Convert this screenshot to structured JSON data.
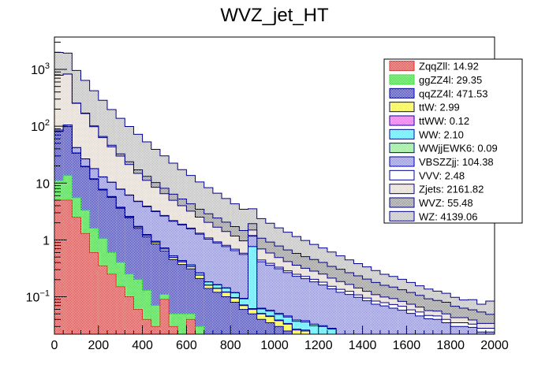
{
  "chart_data": {
    "type": "bar",
    "subtype": "stacked-histogram",
    "title": "WVZ_jet_HT",
    "xlabel": "",
    "ylabel": "",
    "xlim": [
      0,
      2000
    ],
    "ylim": [
      0.022,
      3700
    ],
    "yscale": "log",
    "bin_width": 40,
    "x_ticks": [
      "0",
      "200",
      "400",
      "600",
      "800",
      "1000",
      "1200",
      "1400",
      "1600",
      "1800",
      "2000"
    ],
    "y_ticks": [
      {
        "value": 0.1,
        "base": "10",
        "exp": "−1"
      },
      {
        "value": 1,
        "label": "1"
      },
      {
        "value": 10,
        "label": "10"
      },
      {
        "value": 100,
        "base": "10",
        "exp": "2"
      },
      {
        "value": 1000,
        "base": "10",
        "exp": "3"
      }
    ],
    "legend_position": "top-right",
    "grid": false,
    "series": [
      {
        "name": "ZqqZll",
        "total": "14.92",
        "color": "#d03030",
        "values": [
          5.0,
          5.0,
          2.5,
          1.3,
          0.6,
          0.35,
          0.25,
          0.15,
          0.1,
          0.06,
          0.04,
          0.03,
          0.09,
          0.03,
          0.02,
          0.04,
          0.01
        ]
      },
      {
        "name": "ggZZ4l",
        "total": "29.35",
        "color": "#40d040",
        "values": [
          6.0,
          8.5,
          3.0,
          2.0,
          1.0,
          0.7,
          0.35,
          0.25,
          0.15,
          0.14,
          0.09,
          0.04,
          0.02,
          0.02,
          0.03,
          0.01,
          0.02
        ]
      },
      {
        "name": "qqZZ4l",
        "total": "471.53",
        "color": "#1010a0",
        "values": [
          70,
          85,
          28,
          16,
          10,
          6.5,
          5,
          3.2,
          2.2,
          1.4,
          1.0,
          0.78,
          0.53,
          0.4,
          0.32,
          0.26,
          0.18,
          0.14,
          0.12,
          0.1,
          0.08,
          0.06,
          0.05,
          0.04,
          0.035,
          0.03,
          0.025,
          0.02,
          0.02,
          0.015,
          0.015,
          0.012,
          0.01,
          0.01,
          0.008,
          0.006,
          0.005,
          0.005,
          0.004,
          0.004,
          0.003,
          0.003,
          0.003,
          0.002,
          0.002,
          0.002,
          0.002,
          0.001,
          0.001,
          0.001
        ]
      },
      {
        "name": "ttW",
        "total": "2.99",
        "color": "#f0f060",
        "values": [
          0.3,
          0.3,
          0.25,
          0.2,
          0.18,
          0.15,
          0.12,
          0.1,
          0.09,
          0.08,
          0.07,
          0.06,
          0.05,
          0.04,
          0.04,
          0.03,
          0.03,
          0.02,
          0.02,
          0.02,
          0.015,
          0.01,
          0.01,
          0.01,
          0.01,
          0.008,
          0.008,
          0.006,
          0.005,
          0.005,
          0.004,
          0.004,
          0.003,
          0.003,
          0.003,
          0.002,
          0.002,
          0.002,
          0.002,
          0.002,
          0.001,
          0.001,
          0.001,
          0.001,
          0.001,
          0.001,
          0.001,
          0.001,
          0.001,
          0.001
        ]
      },
      {
        "name": "ttWW",
        "total": "0.12",
        "color": "#e060e0",
        "values": [
          0.01,
          0.01,
          0.01,
          0.008,
          0.008,
          0.006,
          0.006,
          0.005,
          0.005,
          0.004,
          0.004,
          0.004,
          0.003,
          0.003,
          0.003,
          0.003,
          0.002,
          0.002,
          0.002,
          0.002,
          0.002,
          0.002,
          0.002,
          0.001,
          0.001,
          0.001,
          0.001,
          0.001,
          0.001,
          0.001,
          0.001,
          0.001,
          0.001,
          0.001,
          0.001,
          0.001,
          0.001,
          0.001,
          0.001,
          0.001,
          0.001,
          0.001,
          0.001,
          0.001,
          0.001,
          0.001,
          0.001,
          0.001,
          0.001,
          0.001
        ]
      },
      {
        "name": "WW",
        "total": "2.10",
        "color": "#60e0f0",
        "values": [
          0.2,
          0.2,
          0.15,
          0.1,
          0.1,
          0.08,
          0.06,
          0.05,
          0.05,
          0.04,
          0.04,
          0.03,
          0.03,
          0.03,
          0.02,
          0.02,
          0.02,
          0.02,
          0.02,
          0.02,
          0.02,
          0.02,
          0.7,
          0.01,
          0.01,
          0.01,
          0.01,
          0.01,
          0.01,
          0.01,
          0.01,
          0.01,
          0.005,
          0.005,
          0.005,
          0.005,
          0.005,
          0.005,
          0.005,
          0.005,
          0.005,
          0.005,
          0.005,
          0.005,
          0.005,
          0.005,
          0.005,
          0.005,
          0.005,
          0.005
        ]
      },
      {
        "name": "WWjjEWK6",
        "total": "0.09",
        "color": "#90e090",
        "values": [
          0.005,
          0.005,
          0.005,
          0.005,
          0.004,
          0.004,
          0.004,
          0.004,
          0.003,
          0.003,
          0.003,
          0.003,
          0.003,
          0.002,
          0.002,
          0.002,
          0.002,
          0.002,
          0.002,
          0.002,
          0.002,
          0.002,
          0.002,
          0.002,
          0.002,
          0.002,
          0.002,
          0.002,
          0.002,
          0.002,
          0.001,
          0.001,
          0.001,
          0.001,
          0.001,
          0.001,
          0.001,
          0.001,
          0.001,
          0.001,
          0.001,
          0.001,
          0.001,
          0.001,
          0.001,
          0.001,
          0.001,
          0.001,
          0.001,
          0.001
        ]
      },
      {
        "name": "VBSZZjj",
        "total": "104.38",
        "color": "#7070d0",
        "values": [
          4,
          6,
          8,
          7,
          6,
          5,
          4.5,
          4,
          3.5,
          3,
          2.6,
          2.2,
          1.9,
          1.6,
          1.4,
          1.2,
          1.0,
          0.85,
          0.72,
          0.62,
          0.53,
          0.46,
          0.4,
          0.35,
          0.3,
          0.26,
          0.22,
          0.19,
          0.17,
          0.15,
          0.13,
          0.11,
          0.1,
          0.09,
          0.08,
          0.07,
          0.06,
          0.055,
          0.05,
          0.045,
          0.04,
          0.035,
          0.03,
          0.03,
          0.025,
          0.02,
          0.02,
          0.02,
          0.015,
          0.015
        ]
      },
      {
        "name": "VVV",
        "total": "2.48",
        "color": "#ffffff",
        "values": [
          0.1,
          0.12,
          0.12,
          0.12,
          0.11,
          0.1,
          0.1,
          0.09,
          0.09,
          0.08,
          0.08,
          0.07,
          0.07,
          0.06,
          0.06,
          0.05,
          0.05,
          0.05,
          0.04,
          0.04,
          0.04,
          0.03,
          0.03,
          0.03,
          0.03,
          0.02,
          0.02,
          0.02,
          0.02,
          0.02,
          0.02,
          0.015,
          0.015,
          0.015,
          0.01,
          0.01,
          0.01,
          0.01,
          0.01,
          0.01,
          0.008,
          0.008,
          0.006,
          0.006,
          0.005,
          0.005,
          0.005,
          0.004,
          0.004,
          0.004
        ]
      },
      {
        "name": "Zjets",
        "total": "2161.82",
        "color": "#d8d0c8",
        "values": [
          700,
          720,
          210,
          140,
          80,
          50,
          33,
          22,
          15,
          10,
          7.2,
          5.2,
          3.8,
          2.8,
          2.1,
          1.6,
          1.2,
          0.95,
          0.75,
          0.6,
          0.48,
          0.38,
          0.3,
          0.25,
          0.2,
          0.16,
          0.13,
          0.11,
          0.09,
          0.08,
          0.07,
          0.06,
          0.05,
          0.04,
          0.035,
          0.03,
          0.025,
          0.02,
          0.02,
          0.015,
          0.015,
          0.012,
          0.01,
          0.01,
          0.01,
          0.008,
          0.008,
          0.006,
          0.006,
          0.006
        ]
      },
      {
        "name": "WVZ",
        "total": "55.48",
        "color": "#707070",
        "values": [
          2.0,
          2.6,
          3.4,
          3.6,
          3.4,
          3.2,
          3.0,
          2.8,
          2.5,
          2.3,
          2.0,
          1.8,
          1.6,
          1.4,
          1.25,
          1.1,
          0.95,
          0.85,
          0.75,
          0.65,
          0.55,
          0.5,
          0.44,
          0.38,
          0.33,
          0.29,
          0.25,
          0.22,
          0.19,
          0.17,
          0.15,
          0.13,
          0.12,
          0.1,
          0.09,
          0.08,
          0.07,
          0.06,
          0.055,
          0.05,
          0.045,
          0.04,
          0.035,
          0.03,
          0.03,
          0.025,
          0.02,
          0.02,
          0.02,
          0.015
        ]
      },
      {
        "name": "WZ",
        "total": "4139.06",
        "color": "#a8a8a8",
        "values": [
          1200,
          1100,
          700,
          470,
          320,
          220,
          150,
          105,
          75,
          55,
          40,
          29,
          22,
          16,
          12,
          9.3,
          7.0,
          5.4,
          4.2,
          3.3,
          2.6,
          2.0,
          1.6,
          1.3,
          1.05,
          0.85,
          0.7,
          0.57,
          0.47,
          0.38,
          0.32,
          0.27,
          0.22,
          0.18,
          0.15,
          0.13,
          0.11,
          0.09,
          0.08,
          0.07,
          0.06,
          0.05,
          0.045,
          0.04,
          0.035,
          0.03,
          0.025,
          0.03,
          0.02,
          0.035
        ]
      }
    ]
  }
}
